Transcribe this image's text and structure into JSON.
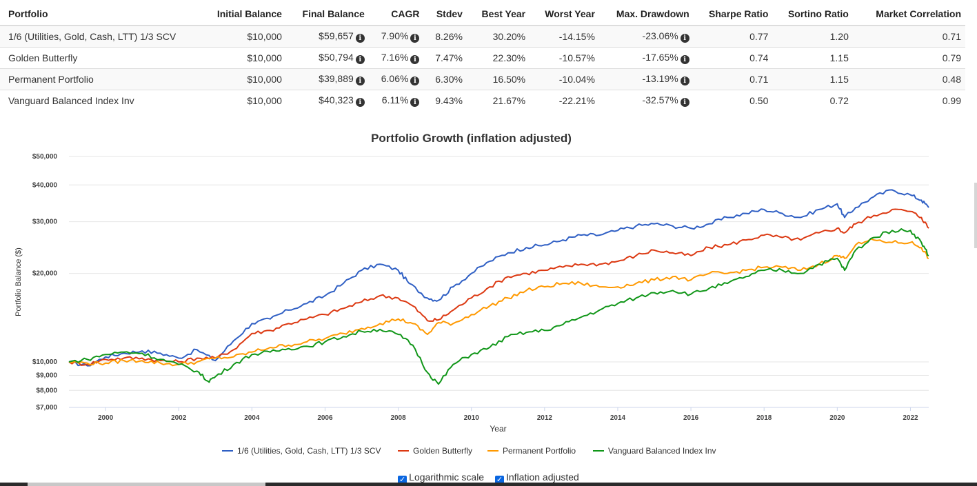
{
  "table": {
    "headers": [
      "Portfolio",
      "Initial Balance",
      "Final Balance",
      "CAGR",
      "Stdev",
      "Best Year",
      "Worst Year",
      "Max. Drawdown",
      "Sharpe Ratio",
      "Sortino Ratio",
      "Market Correlation"
    ],
    "rows": [
      {
        "name": "1/6 (Utilities, Gold, Cash, LTT) 1/3 SCV",
        "initial": "$10,000",
        "final": "$59,657",
        "cagr": "7.90%",
        "stdev": "8.26%",
        "best": "30.20%",
        "worst": "-14.15%",
        "maxdd": "-23.06%",
        "sharpe": "0.77",
        "sortino": "1.20",
        "corr": "0.71"
      },
      {
        "name": "Golden Butterfly",
        "initial": "$10,000",
        "final": "$50,794",
        "cagr": "7.16%",
        "stdev": "7.47%",
        "best": "22.30%",
        "worst": "-10.57%",
        "maxdd": "-17.65%",
        "sharpe": "0.74",
        "sortino": "1.15",
        "corr": "0.79"
      },
      {
        "name": "Permanent Portfolio",
        "initial": "$10,000",
        "final": "$39,889",
        "cagr": "6.06%",
        "stdev": "6.30%",
        "best": "16.50%",
        "worst": "-10.04%",
        "maxdd": "-13.19%",
        "sharpe": "0.71",
        "sortino": "1.15",
        "corr": "0.48"
      },
      {
        "name": "Vanguard Balanced Index Inv",
        "initial": "$10,000",
        "final": "$40,323",
        "cagr": "6.11%",
        "stdev": "9.43%",
        "best": "21.67%",
        "worst": "-22.21%",
        "maxdd": "-32.57%",
        "sharpe": "0.50",
        "sortino": "0.72",
        "corr": "0.99"
      }
    ]
  },
  "info_icon": "info-circle-icon",
  "controls": {
    "log_label": "Logarithmic scale",
    "log_checked": true,
    "inflation_label": "Inflation adjusted",
    "inflation_checked": true
  },
  "chart_data": {
    "type": "line",
    "title": "Portfolio Growth (inflation adjusted)",
    "xlabel": "Year",
    "ylabel": "Portfolio Balance ($)",
    "y_scale": "log",
    "xlim": [
      1999.0,
      2022.5
    ],
    "ylim": [
      7000,
      50000
    ],
    "x_ticks": [
      2000,
      2002,
      2004,
      2006,
      2008,
      2010,
      2012,
      2014,
      2016,
      2018,
      2020,
      2022
    ],
    "y_ticks": [
      {
        "value": 7000,
        "label": "$7,000"
      },
      {
        "value": 8000,
        "label": "$8,000"
      },
      {
        "value": 9000,
        "label": "$9,000"
      },
      {
        "value": 10000,
        "label": "$10,000"
      },
      {
        "value": 20000,
        "label": "$20,000"
      },
      {
        "value": 30000,
        "label": "$30,000"
      },
      {
        "value": 40000,
        "label": "$40,000"
      },
      {
        "value": 50000,
        "label": "$50,000"
      }
    ],
    "grid": true,
    "legend_position": "bottom",
    "series": [
      {
        "name": "1/6 (Utilities, Gold, Cash, LTT) 1/3 SCV",
        "color": "#2f5fc4",
        "points": [
          [
            1999.0,
            10000
          ],
          [
            1999.5,
            9700
          ],
          [
            2000.0,
            10400
          ],
          [
            2000.5,
            10700
          ],
          [
            2001.0,
            10900
          ],
          [
            2001.5,
            10700
          ],
          [
            2002.0,
            10300
          ],
          [
            2002.5,
            11000
          ],
          [
            2003.0,
            10100
          ],
          [
            2003.5,
            11800
          ],
          [
            2004.0,
            13500
          ],
          [
            2004.5,
            14000
          ],
          [
            2005.0,
            15000
          ],
          [
            2005.5,
            15800
          ],
          [
            2006.0,
            16800
          ],
          [
            2006.5,
            18500
          ],
          [
            2007.0,
            20500
          ],
          [
            2007.5,
            21500
          ],
          [
            2008.0,
            20500
          ],
          [
            2008.3,
            18500
          ],
          [
            2008.8,
            16500
          ],
          [
            2009.1,
            16200
          ],
          [
            2009.5,
            18000
          ],
          [
            2010.0,
            20000
          ],
          [
            2010.5,
            22000
          ],
          [
            2011.0,
            23500
          ],
          [
            2011.5,
            24500
          ],
          [
            2012.0,
            25000
          ],
          [
            2012.5,
            26000
          ],
          [
            2013.0,
            27000
          ],
          [
            2013.5,
            27000
          ],
          [
            2014.0,
            28000
          ],
          [
            2014.5,
            29000
          ],
          [
            2015.0,
            29500
          ],
          [
            2015.5,
            29000
          ],
          [
            2016.0,
            28500
          ],
          [
            2016.5,
            29500
          ],
          [
            2017.0,
            31000
          ],
          [
            2017.5,
            32000
          ],
          [
            2018.0,
            33000
          ],
          [
            2018.5,
            32000
          ],
          [
            2019.0,
            31000
          ],
          [
            2019.5,
            33000
          ],
          [
            2020.0,
            34500
          ],
          [
            2020.2,
            31000
          ],
          [
            2020.5,
            33500
          ],
          [
            2021.0,
            36500
          ],
          [
            2021.5,
            38500
          ],
          [
            2022.0,
            37000
          ],
          [
            2022.3,
            35500
          ],
          [
            2022.5,
            33500
          ]
        ]
      },
      {
        "name": "Golden Butterfly",
        "color": "#dc3912",
        "points": [
          [
            1999.0,
            10000
          ],
          [
            1999.5,
            9800
          ],
          [
            2000.0,
            10200
          ],
          [
            2000.5,
            10300
          ],
          [
            2001.0,
            10300
          ],
          [
            2001.5,
            10100
          ],
          [
            2002.0,
            10000
          ],
          [
            2002.5,
            10300
          ],
          [
            2003.0,
            10300
          ],
          [
            2003.5,
            11000
          ],
          [
            2004.0,
            12500
          ],
          [
            2004.5,
            12800
          ],
          [
            2005.0,
            13500
          ],
          [
            2005.5,
            14000
          ],
          [
            2006.0,
            14500
          ],
          [
            2006.5,
            15200
          ],
          [
            2007.0,
            16000
          ],
          [
            2007.5,
            16800
          ],
          [
            2008.0,
            16500
          ],
          [
            2008.4,
            15500
          ],
          [
            2008.8,
            13800
          ],
          [
            2009.1,
            13900
          ],
          [
            2009.5,
            15000
          ],
          [
            2010.0,
            16500
          ],
          [
            2010.5,
            18000
          ],
          [
            2011.0,
            19500
          ],
          [
            2011.5,
            20000
          ],
          [
            2012.0,
            20500
          ],
          [
            2012.5,
            21000
          ],
          [
            2013.0,
            21500
          ],
          [
            2013.5,
            21500
          ],
          [
            2014.0,
            22000
          ],
          [
            2014.5,
            23000
          ],
          [
            2015.0,
            24000
          ],
          [
            2015.5,
            23500
          ],
          [
            2016.0,
            23000
          ],
          [
            2016.5,
            24500
          ],
          [
            2017.0,
            25000
          ],
          [
            2017.5,
            26000
          ],
          [
            2018.0,
            27000
          ],
          [
            2018.5,
            26500
          ],
          [
            2019.0,
            26000
          ],
          [
            2019.5,
            27500
          ],
          [
            2020.0,
            28500
          ],
          [
            2020.2,
            27500
          ],
          [
            2020.5,
            29500
          ],
          [
            2021.0,
            31500
          ],
          [
            2021.5,
            33000
          ],
          [
            2022.0,
            32500
          ],
          [
            2022.3,
            31000
          ],
          [
            2022.5,
            28500
          ]
        ]
      },
      {
        "name": "Permanent Portfolio",
        "color": "#ff9900",
        "points": [
          [
            1999.0,
            10000
          ],
          [
            1999.5,
            9900
          ],
          [
            2000.0,
            9900
          ],
          [
            2000.5,
            10100
          ],
          [
            2001.0,
            10100
          ],
          [
            2001.5,
            9900
          ],
          [
            2002.0,
            9800
          ],
          [
            2002.5,
            10000
          ],
          [
            2003.0,
            10300
          ],
          [
            2003.5,
            10400
          ],
          [
            2004.0,
            10800
          ],
          [
            2004.5,
            11200
          ],
          [
            2005.0,
            11400
          ],
          [
            2005.5,
            11700
          ],
          [
            2006.0,
            12000
          ],
          [
            2006.5,
            12500
          ],
          [
            2007.0,
            13000
          ],
          [
            2007.5,
            13500
          ],
          [
            2008.0,
            14000
          ],
          [
            2008.4,
            13500
          ],
          [
            2008.8,
            12400
          ],
          [
            2009.1,
            13600
          ],
          [
            2009.5,
            13500
          ],
          [
            2010.0,
            14500
          ],
          [
            2010.5,
            15500
          ],
          [
            2011.0,
            16500
          ],
          [
            2011.5,
            17500
          ],
          [
            2012.0,
            18000
          ],
          [
            2012.5,
            18500
          ],
          [
            2013.0,
            18500
          ],
          [
            2013.5,
            18000
          ],
          [
            2014.0,
            18000
          ],
          [
            2014.5,
            18500
          ],
          [
            2015.0,
            19000
          ],
          [
            2015.5,
            19500
          ],
          [
            2016.0,
            19000
          ],
          [
            2016.5,
            20000
          ],
          [
            2017.0,
            20000
          ],
          [
            2017.5,
            20500
          ],
          [
            2018.0,
            21000
          ],
          [
            2018.5,
            21000
          ],
          [
            2019.0,
            20500
          ],
          [
            2019.5,
            21500
          ],
          [
            2020.0,
            23000
          ],
          [
            2020.2,
            22500
          ],
          [
            2020.5,
            25000
          ],
          [
            2021.0,
            26000
          ],
          [
            2021.5,
            25500
          ],
          [
            2022.0,
            25500
          ],
          [
            2022.3,
            24500
          ],
          [
            2022.5,
            22500
          ]
        ]
      },
      {
        "name": "Vanguard Balanced Index Inv",
        "color": "#109618",
        "points": [
          [
            1999.0,
            10000
          ],
          [
            1999.5,
            10200
          ],
          [
            2000.0,
            10600
          ],
          [
            2000.5,
            10800
          ],
          [
            2001.0,
            10700
          ],
          [
            2001.5,
            10200
          ],
          [
            2002.0,
            9800
          ],
          [
            2002.5,
            9300
          ],
          [
            2002.8,
            8600
          ],
          [
            2003.0,
            8900
          ],
          [
            2003.5,
            9800
          ],
          [
            2004.0,
            10600
          ],
          [
            2004.5,
            10800
          ],
          [
            2005.0,
            11100
          ],
          [
            2005.5,
            11300
          ],
          [
            2006.0,
            11700
          ],
          [
            2006.5,
            12200
          ],
          [
            2007.0,
            12700
          ],
          [
            2007.5,
            12900
          ],
          [
            2008.0,
            12400
          ],
          [
            2008.4,
            11400
          ],
          [
            2008.8,
            9200
          ],
          [
            2009.1,
            8400
          ],
          [
            2009.5,
            9800
          ],
          [
            2010.0,
            10600
          ],
          [
            2010.5,
            11200
          ],
          [
            2011.0,
            12200
          ],
          [
            2011.5,
            12600
          ],
          [
            2012.0,
            12800
          ],
          [
            2012.5,
            13400
          ],
          [
            2013.0,
            14200
          ],
          [
            2013.5,
            15000
          ],
          [
            2014.0,
            15800
          ],
          [
            2014.5,
            16500
          ],
          [
            2015.0,
            17200
          ],
          [
            2015.5,
            17500
          ],
          [
            2016.0,
            17000
          ],
          [
            2016.5,
            17800
          ],
          [
            2017.0,
            18500
          ],
          [
            2017.5,
            19500
          ],
          [
            2018.0,
            20500
          ],
          [
            2018.5,
            20500
          ],
          [
            2019.0,
            20000
          ],
          [
            2019.5,
            21500
          ],
          [
            2020.0,
            22500
          ],
          [
            2020.2,
            20500
          ],
          [
            2020.5,
            24000
          ],
          [
            2021.0,
            26500
          ],
          [
            2021.5,
            28000
          ],
          [
            2022.0,
            28000
          ],
          [
            2022.3,
            25500
          ],
          [
            2022.5,
            23000
          ]
        ]
      }
    ]
  }
}
